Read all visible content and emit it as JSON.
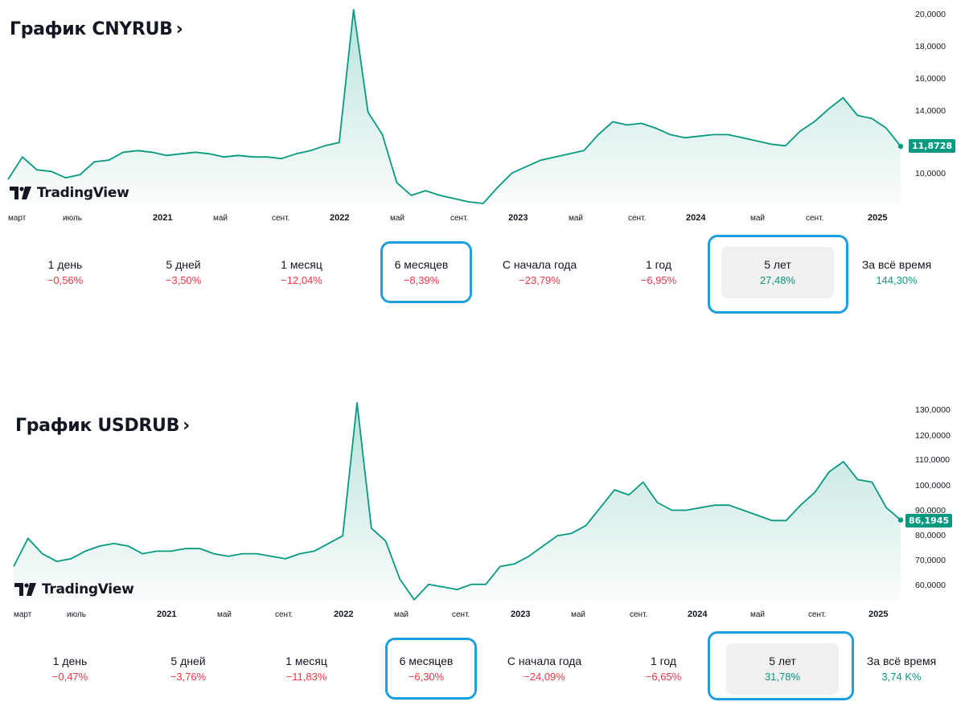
{
  "colors": {
    "line": "#089981",
    "neg": "#f23645",
    "pos": "#089981",
    "highlight": "#1e9fe0"
  },
  "logo_text": "TradingView",
  "panels": [
    {
      "title": "График CNYRUB",
      "chevron": "›",
      "last_price": "11,8728",
      "y_ticks": [
        "20,0000",
        "18,0000",
        "16,0000",
        "14,0000",
        "10,0000"
      ],
      "x_ticks": [
        "март",
        "июль",
        "2021",
        "май",
        "сент.",
        "2022",
        "май",
        "сент.",
        "2023",
        "май",
        "сент.",
        "2024",
        "май",
        "сент.",
        "2025"
      ],
      "performance": [
        {
          "label": "1 день",
          "value": "−0,56%",
          "sign": "neg"
        },
        {
          "label": "5 дней",
          "value": "−3,50%",
          "sign": "neg"
        },
        {
          "label": "1 месяц",
          "value": "−12,04%",
          "sign": "neg"
        },
        {
          "label": "6 месяцев",
          "value": "−8,39%",
          "sign": "neg"
        },
        {
          "label": "С начала года",
          "value": "−23,79%",
          "sign": "neg"
        },
        {
          "label": "1 год",
          "value": "−6,95%",
          "sign": "neg"
        },
        {
          "label": "5 лет",
          "value": "27,48%",
          "sign": "pos"
        },
        {
          "label": "За всё время",
          "value": "144,30%",
          "sign": "pos"
        }
      ]
    },
    {
      "title": "График USDRUB",
      "chevron": "›",
      "last_price": "86,1945",
      "y_ticks": [
        "130,0000",
        "120,0000",
        "110,0000",
        "100,0000",
        "90,0000",
        "80,0000",
        "70,0000",
        "60,0000"
      ],
      "x_ticks": [
        "март",
        "июль",
        "2021",
        "май",
        "сент.",
        "2022",
        "май",
        "сент.",
        "2023",
        "май",
        "сент.",
        "2024",
        "май",
        "сент.",
        "2025"
      ],
      "performance": [
        {
          "label": "1 день",
          "value": "−0,47%",
          "sign": "neg"
        },
        {
          "label": "5 дней",
          "value": "−3,76%",
          "sign": "neg"
        },
        {
          "label": "1 месяц",
          "value": "−11,83%",
          "sign": "neg"
        },
        {
          "label": "6 месяцев",
          "value": "−6,30%",
          "sign": "neg"
        },
        {
          "label": "С начала года",
          "value": "−24,09%",
          "sign": "neg"
        },
        {
          "label": "1 год",
          "value": "−6,65%",
          "sign": "neg"
        },
        {
          "label": "5 лет",
          "value": "31,78%",
          "sign": "pos"
        },
        {
          "label": "За всё время",
          "value": "3,74 K%",
          "sign": "pos"
        }
      ]
    }
  ],
  "chart_data": [
    {
      "type": "area",
      "ylim": [
        8.2,
        20.5
      ],
      "x": [
        "2020-03",
        "2020-04",
        "2020-05",
        "2020-06",
        "2020-07",
        "2020-08",
        "2020-09",
        "2020-10",
        "2020-11",
        "2020-12",
        "2021-01",
        "2021-02",
        "2021-03",
        "2021-04",
        "2021-05",
        "2021-06",
        "2021-07",
        "2021-08",
        "2021-09",
        "2021-10",
        "2021-11",
        "2021-12",
        "2022-01",
        "2022-02",
        "2022-03a",
        "2022-03b",
        "2022-04",
        "2022-05",
        "2022-06",
        "2022-07",
        "2022-08",
        "2022-09",
        "2022-10",
        "2022-11",
        "2022-12",
        "2023-01",
        "2023-02",
        "2023-03",
        "2023-04",
        "2023-05",
        "2023-06",
        "2023-07",
        "2023-08",
        "2023-09",
        "2023-10",
        "2023-11",
        "2023-12",
        "2024-01",
        "2024-02",
        "2024-03",
        "2024-04",
        "2024-05",
        "2024-06",
        "2024-07",
        "2024-08",
        "2024-09",
        "2024-10",
        "2024-11a",
        "2024-11b",
        "2024-12",
        "2025-01",
        "2025-02",
        "2025-03"
      ],
      "series": [
        {
          "values": [
            9.8,
            11.2,
            10.4,
            10.3,
            9.9,
            10.1,
            10.9,
            11.0,
            11.5,
            11.6,
            11.5,
            11.3,
            11.4,
            11.5,
            11.4,
            11.2,
            11.3,
            11.2,
            11.2,
            11.1,
            11.4,
            11.6,
            11.9,
            12.1,
            20.4,
            14.0,
            12.6,
            9.6,
            8.8,
            9.1,
            8.8,
            8.6,
            8.4,
            8.3,
            9.3,
            10.2,
            10.6,
            11.0,
            11.2,
            11.4,
            11.6,
            12.6,
            13.4,
            13.2,
            13.3,
            13.0,
            12.6,
            12.4,
            12.5,
            12.6,
            12.6,
            12.4,
            12.2,
            12.0,
            11.9,
            12.8,
            13.4,
            14.2,
            14.9,
            13.8,
            13.6,
            13.0,
            11.87
          ]
        }
      ]
    },
    {
      "type": "area",
      "ylim": [
        54,
        132
      ],
      "x": [
        "2020-03",
        "2020-04",
        "2020-05",
        "2020-06",
        "2020-07",
        "2020-08",
        "2020-09",
        "2020-10",
        "2020-11",
        "2020-12",
        "2021-01",
        "2021-02",
        "2021-03",
        "2021-04",
        "2021-05",
        "2021-06",
        "2021-07",
        "2021-08",
        "2021-09",
        "2021-10",
        "2021-11",
        "2021-12",
        "2022-01",
        "2022-02",
        "2022-03a",
        "2022-03b",
        "2022-04",
        "2022-05",
        "2022-06",
        "2022-07",
        "2022-08",
        "2022-09",
        "2022-10",
        "2022-11",
        "2022-12",
        "2023-01",
        "2023-02",
        "2023-03",
        "2023-04",
        "2023-05",
        "2023-06",
        "2023-07",
        "2023-08",
        "2023-09",
        "2023-10",
        "2023-11",
        "2023-12",
        "2024-01",
        "2024-02",
        "2024-03",
        "2024-04",
        "2024-05",
        "2024-06",
        "2024-07",
        "2024-08",
        "2024-09",
        "2024-10",
        "2024-11a",
        "2024-11b",
        "2024-12",
        "2025-01",
        "2025-02",
        "2025-03"
      ],
      "series": [
        {
          "values": [
            68.0,
            79.0,
            73.0,
            70.0,
            71.0,
            74.0,
            76.0,
            77.0,
            76.0,
            73.0,
            74.0,
            74.0,
            75.0,
            75.0,
            73.0,
            72.0,
            73.0,
            73.0,
            72.0,
            71.0,
            73.0,
            74.0,
            77.0,
            80.0,
            132.0,
            83.0,
            78.0,
            63.0,
            55.0,
            61.0,
            60.0,
            59.0,
            61.0,
            61.0,
            68.0,
            69.0,
            72.0,
            76.0,
            80.0,
            81.0,
            84.0,
            91.0,
            98.0,
            96.0,
            101.0,
            93.0,
            90.0,
            90.0,
            91.0,
            92.0,
            92.0,
            90.0,
            88.0,
            86.0,
            86.0,
            92.0,
            97.0,
            105.0,
            109.0,
            102.0,
            101.0,
            91.0,
            86.19
          ]
        }
      ]
    }
  ]
}
